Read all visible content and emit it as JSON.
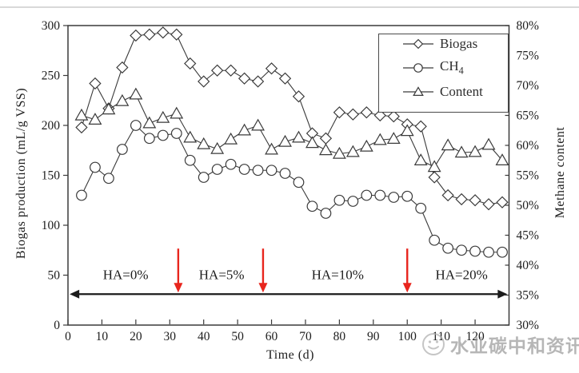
{
  "watermark": {
    "text": "水业碳中和资讯"
  },
  "chart_data": {
    "type": "line",
    "title": "",
    "xlabel": "Time (d)",
    "ylabel_left": "Biogas production (mL/g VSS)",
    "ylabel_right": "Methane content",
    "xlim": [
      0,
      130
    ],
    "ylim_left": [
      0,
      300
    ],
    "ylim_right": [
      30,
      80
    ],
    "x_ticks": [
      0,
      10,
      20,
      30,
      40,
      50,
      60,
      70,
      80,
      90,
      100,
      110,
      120
    ],
    "left_ticks": [
      0,
      50,
      100,
      150,
      200,
      250,
      300
    ],
    "right_ticks": [
      "30%",
      "35%",
      "40%",
      "45%",
      "50%",
      "55%",
      "60%",
      "65%",
      "70%",
      "75%",
      "80%"
    ],
    "grid": false,
    "legend_position": "top-right",
    "x": [
      4,
      8,
      12,
      16,
      20,
      24,
      28,
      32,
      36,
      40,
      44,
      48,
      52,
      56,
      60,
      64,
      68,
      72,
      76,
      80,
      84,
      88,
      92,
      96,
      100,
      104,
      108,
      112,
      116,
      120,
      124,
      128
    ],
    "series": [
      {
        "id": "biogas",
        "name": "Biogas",
        "marker": "diamond",
        "axis": "left",
        "values": [
          198,
          242,
          217,
          258,
          290,
          291,
          293,
          291,
          262,
          244,
          255,
          255,
          247,
          244,
          257,
          247,
          229,
          192,
          187,
          213,
          211,
          213,
          210,
          209,
          201,
          199,
          148,
          130,
          126,
          125,
          121,
          123
        ]
      },
      {
        "id": "ch4",
        "name": "CH4",
        "label_base": "CH",
        "label_sub": "4",
        "marker": "circle",
        "axis": "left",
        "values": [
          130,
          158,
          147,
          176,
          200,
          187,
          190,
          192,
          165,
          148,
          156,
          161,
          156,
          155,
          155,
          152,
          143,
          119,
          112,
          125,
          124,
          130,
          130,
          128,
          129,
          117,
          85,
          77,
          75,
          74,
          73,
          73
        ]
      },
      {
        "id": "content",
        "name": "Content",
        "marker": "triangle",
        "axis": "right",
        "values": [
          65,
          64.3,
          66,
          67.4,
          68.5,
          63.7,
          64.6,
          65.3,
          61.3,
          60.2,
          59.4,
          61,
          62.5,
          63.3,
          59.3,
          60.6,
          61.3,
          60.4,
          59.2,
          58.6,
          58.9,
          59.8,
          60.9,
          61.1,
          62.4,
          57.5,
          56.4,
          60,
          58.8,
          58.9,
          60.1,
          57.5
        ]
      }
    ],
    "annotations": {
      "phase_labels": [
        {
          "label": "HA=0%",
          "t_center": 17
        },
        {
          "label": "HA=5%",
          "t_center": 45.3
        },
        {
          "label": "HA=10%",
          "t_center": 79.5
        },
        {
          "label": "HA=20%",
          "t_center": 116
        }
      ],
      "red_arrows": {
        "times": [
          32.5,
          57.5,
          100
        ],
        "color": "#e8251d"
      },
      "span_arrow": {
        "t_start": 0.5,
        "t_end": 129.5,
        "y_value": 31
      }
    }
  }
}
